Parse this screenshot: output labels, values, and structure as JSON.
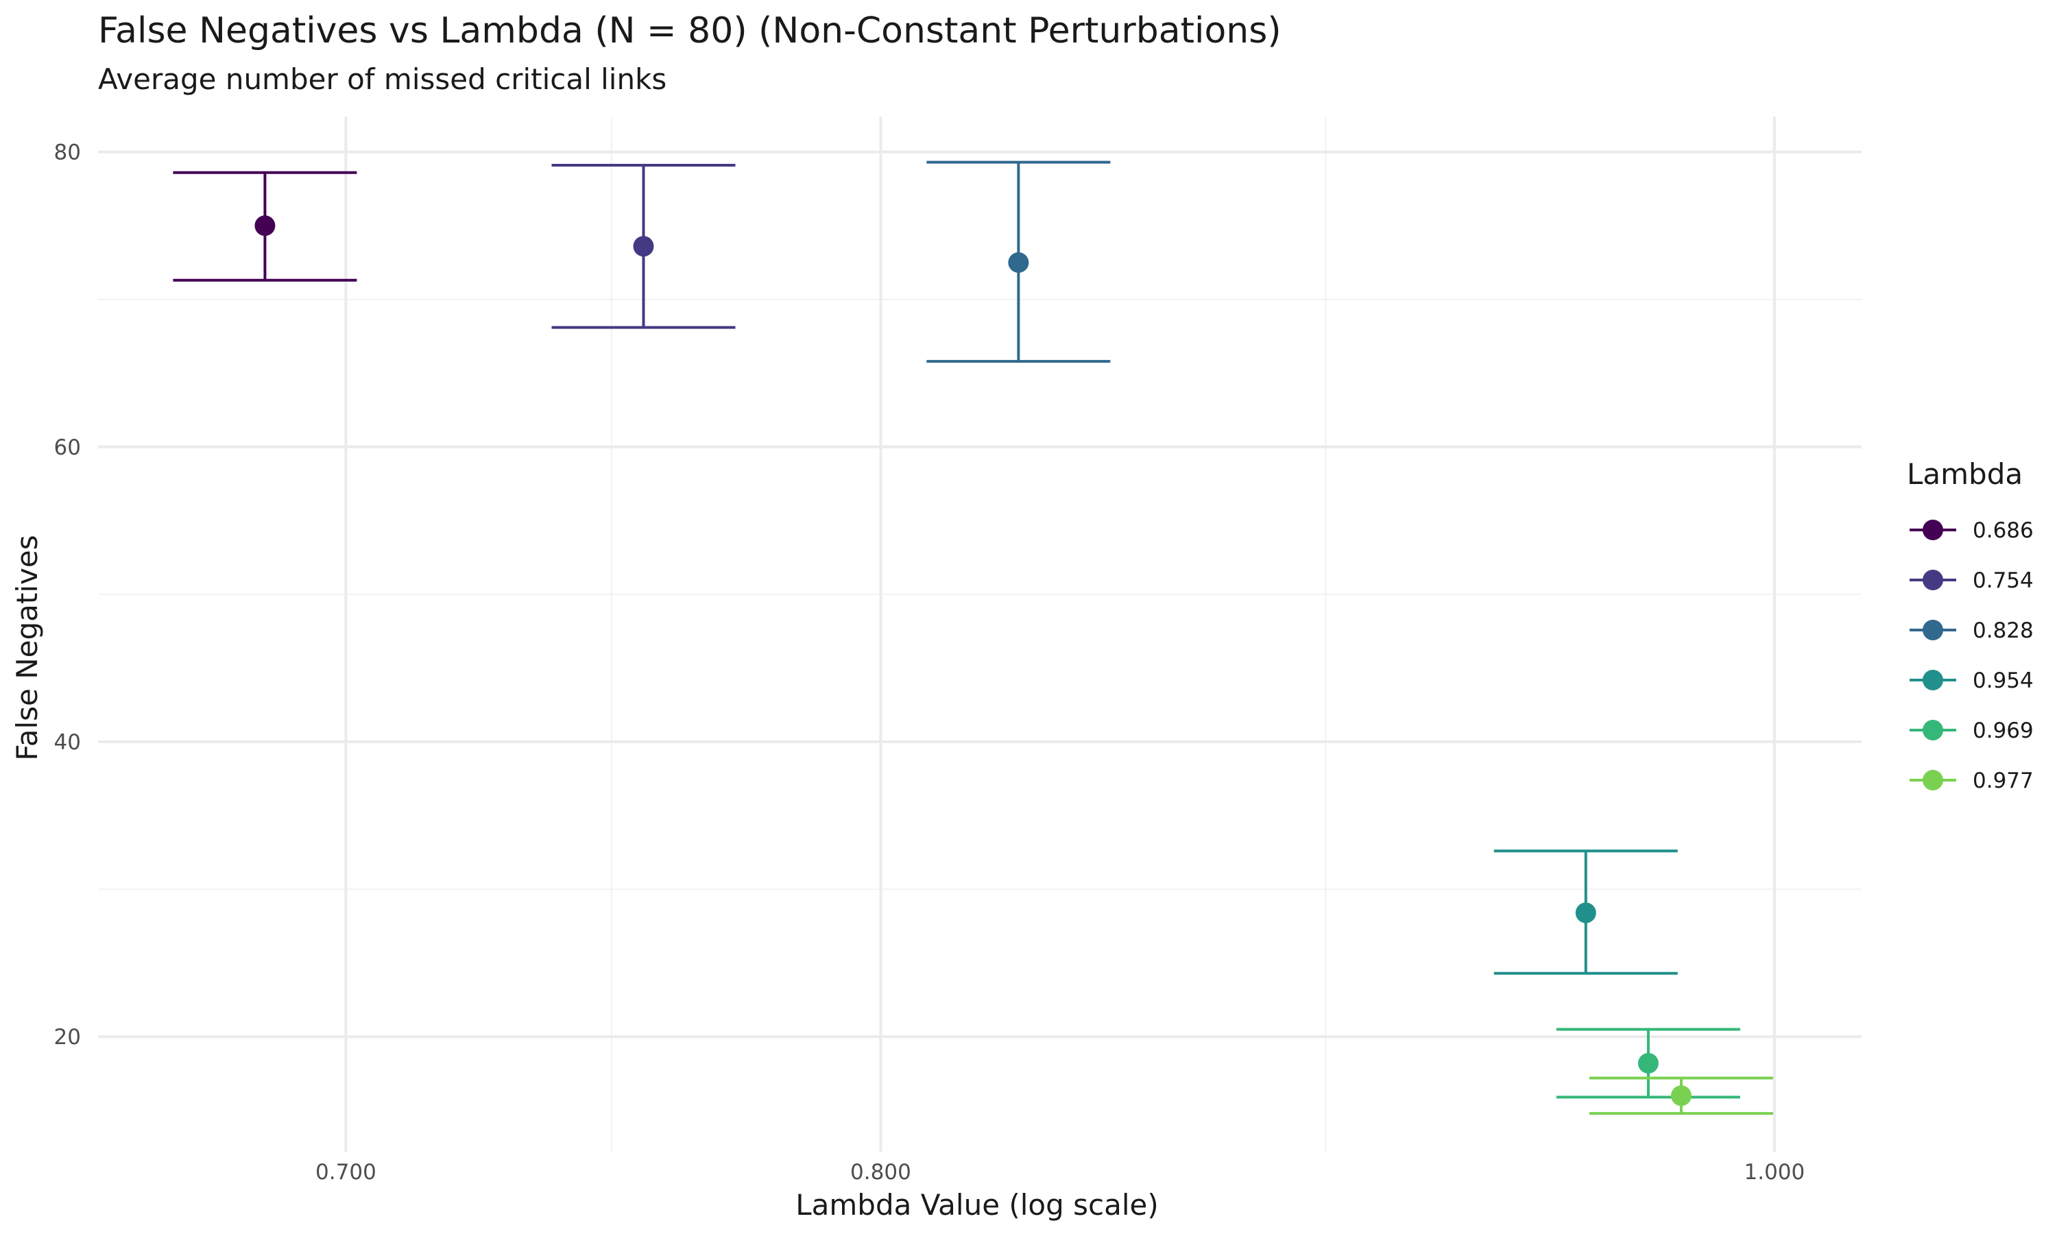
{
  "chart_data": {
    "type": "scatter",
    "title": "False Negatives vs Lambda (N = 80) (Non-Constant Perturbations)",
    "subtitle": "Average number of missed critical links",
    "xlabel": "Lambda Value (log scale)",
    "ylabel": "False Negatives",
    "x_scale": "log",
    "xlim": [
      0.658,
      1.022
    ],
    "ylim": [
      12.2,
      82.4
    ],
    "x_ticks": [
      0.7,
      0.8,
      1.0
    ],
    "x_tick_labels": [
      "0.700",
      "0.800",
      "1.000"
    ],
    "x_minor_ticks": [
      0.748,
      0.894
    ],
    "y_ticks": [
      20,
      40,
      60,
      80
    ],
    "y_tick_labels": [
      "20",
      "40",
      "60",
      "80"
    ],
    "y_minor_ticks": [
      30,
      50,
      70
    ],
    "grid": true,
    "legend": {
      "title": "Lambda",
      "position": "right"
    },
    "series": [
      {
        "name": "0.686",
        "color": "#440154",
        "x": 0.686,
        "y": 75.0,
        "ymin": 71.3,
        "ymax": 78.6
      },
      {
        "name": "0.754",
        "color": "#443A83",
        "x": 0.754,
        "y": 73.6,
        "ymin": 68.1,
        "ymax": 79.1
      },
      {
        "name": "0.828",
        "color": "#31688E",
        "x": 0.828,
        "y": 72.5,
        "ymin": 65.8,
        "ymax": 79.3
      },
      {
        "name": "0.954",
        "color": "#21908C",
        "x": 0.954,
        "y": 28.4,
        "ymin": 24.3,
        "ymax": 32.6
      },
      {
        "name": "0.969",
        "color": "#35B779",
        "x": 0.969,
        "y": 18.2,
        "ymin": 15.9,
        "ymax": 20.5
      },
      {
        "name": "0.977",
        "color": "#7AD151",
        "x": 0.977,
        "y": 16.0,
        "ymin": 14.8,
        "ymax": 17.2
      }
    ]
  }
}
